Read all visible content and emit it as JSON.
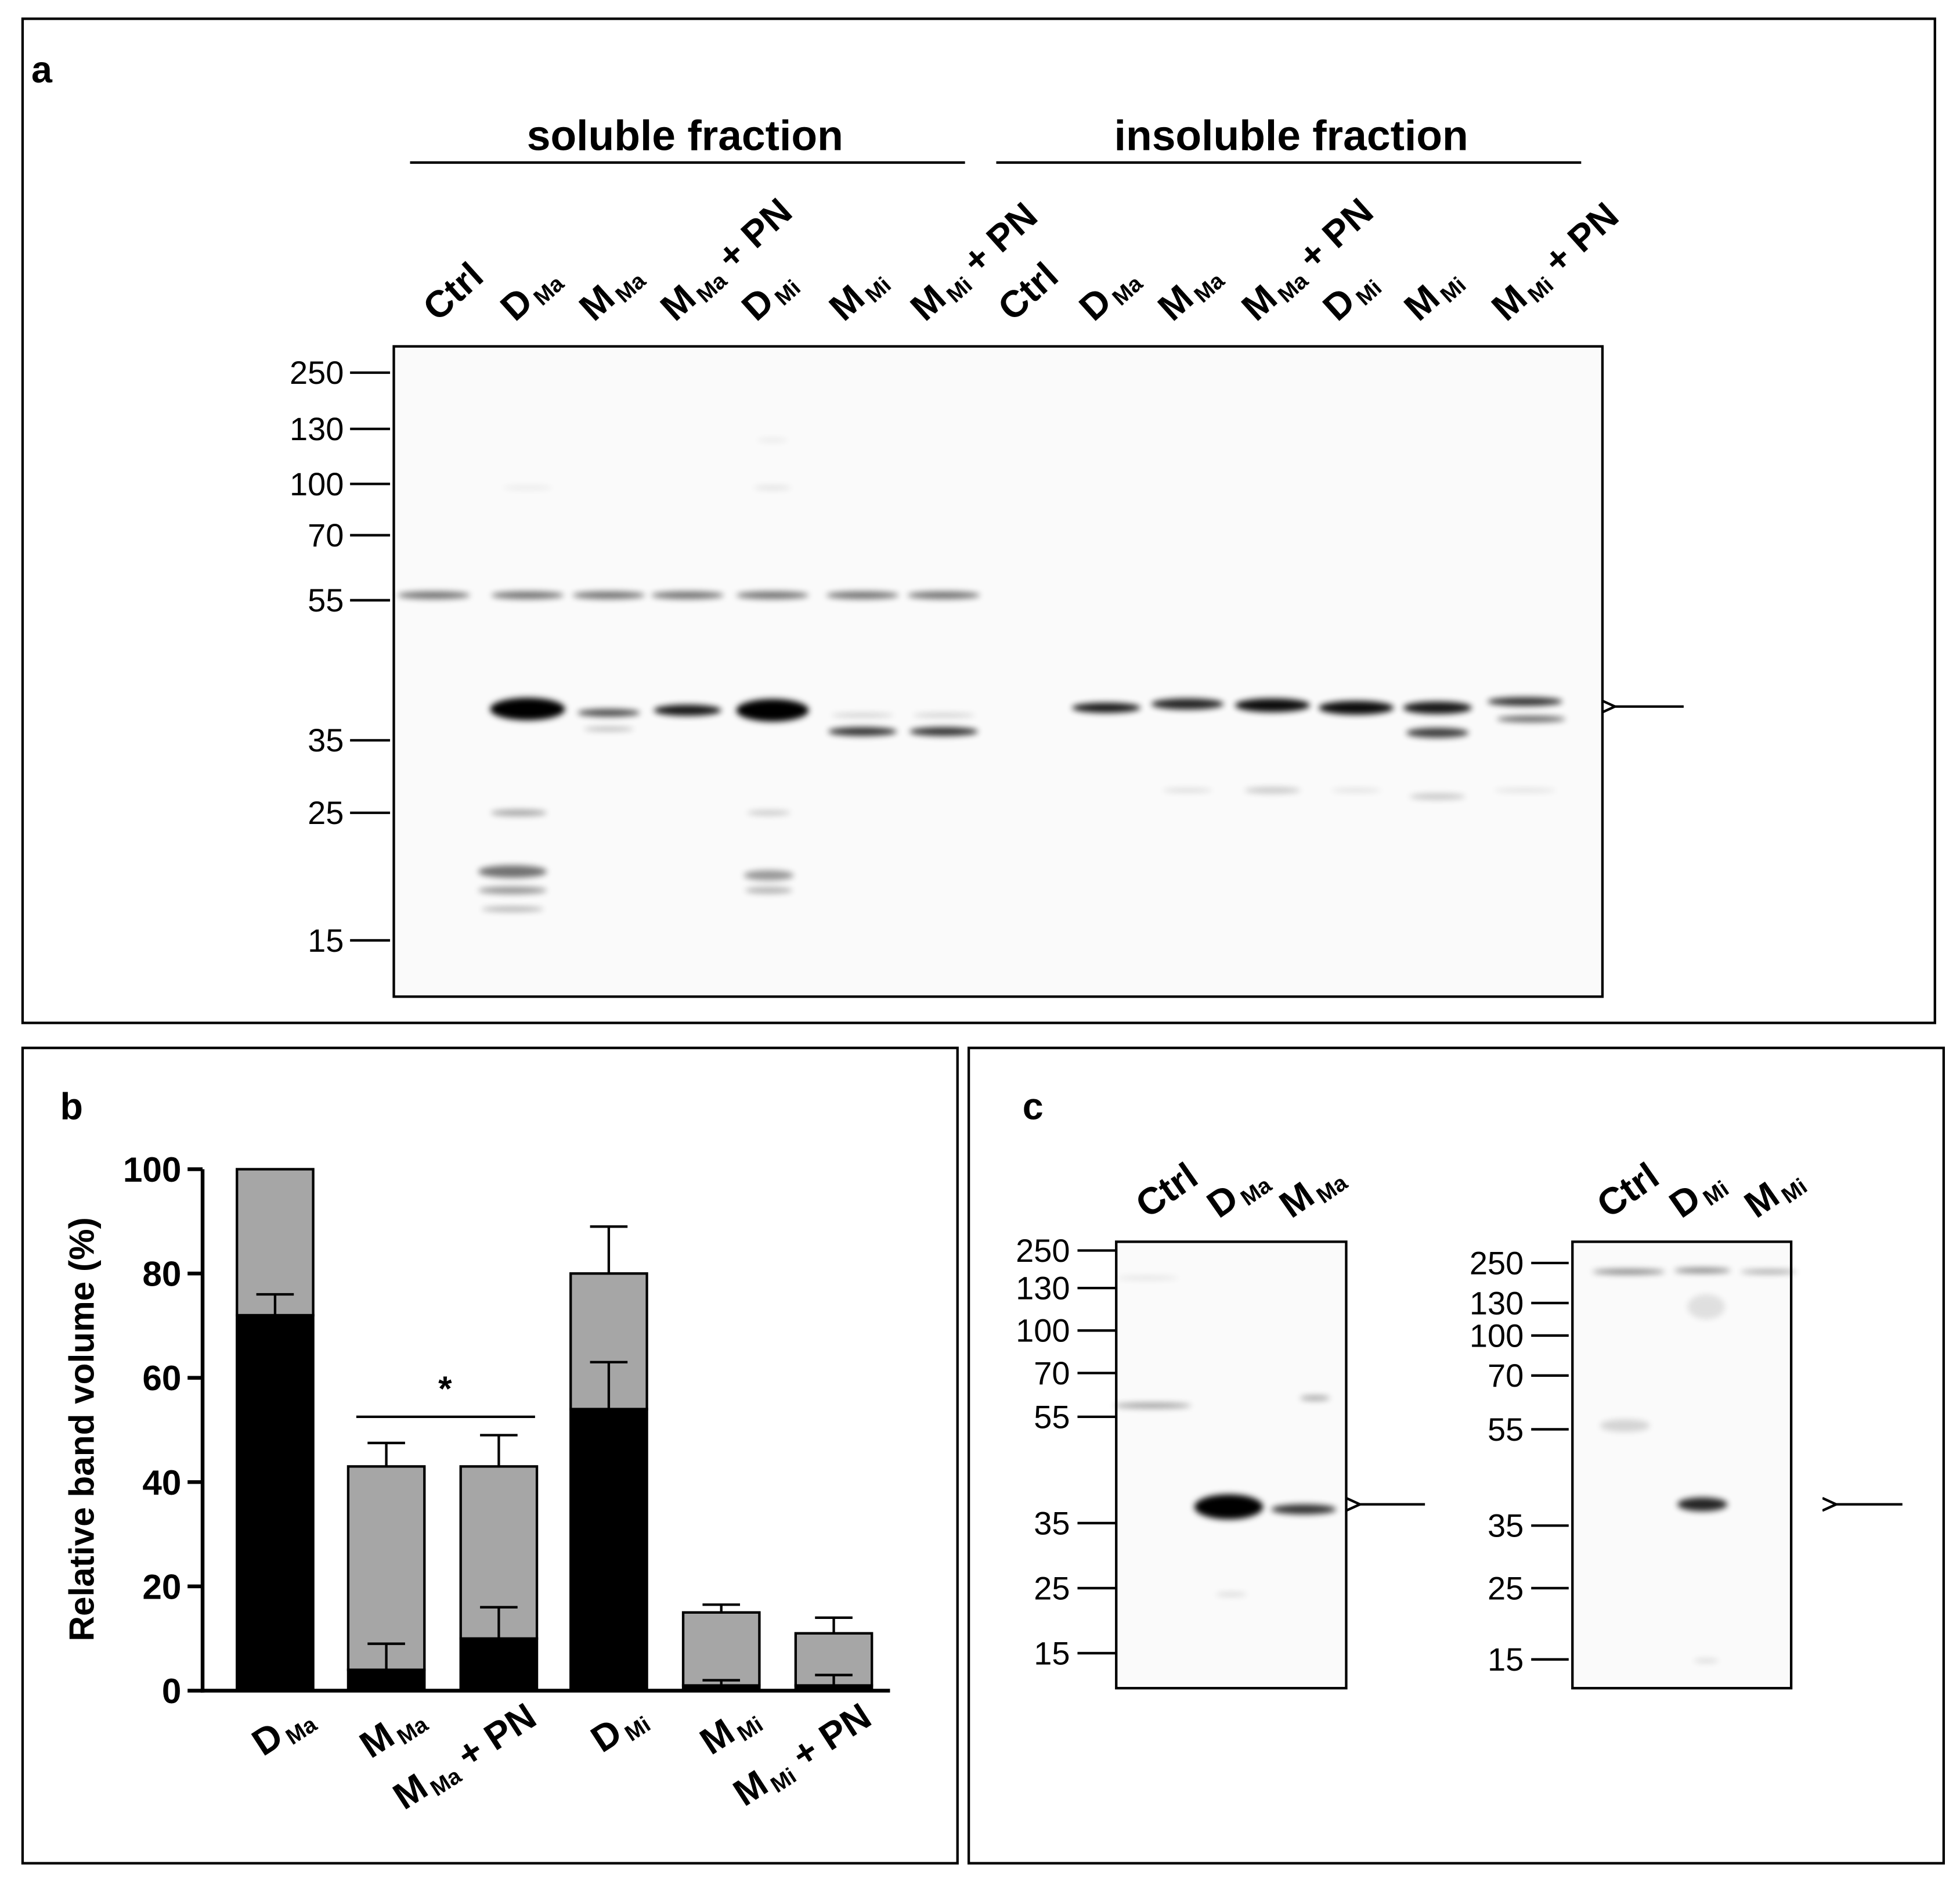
{
  "panel_a": {
    "label": "a",
    "groups": [
      {
        "title": "soluble fraction",
        "lanes": [
          {
            "base": "Ctrl"
          },
          {
            "base": "D",
            "sub": "Ma"
          },
          {
            "base": "M",
            "sub": "Ma"
          },
          {
            "base": "M",
            "sub": "Ma",
            "suffix": "+ PN"
          },
          {
            "base": "D",
            "sub": "Mi"
          },
          {
            "base": "M",
            "sub": "Mi"
          },
          {
            "base": "M",
            "sub": "Mi",
            "suffix": "+ PN"
          }
        ]
      },
      {
        "title": "insoluble fraction",
        "lanes": [
          {
            "base": "Ctrl"
          },
          {
            "base": "D",
            "sub": "Ma"
          },
          {
            "base": "M",
            "sub": "Ma"
          },
          {
            "base": "M",
            "sub": "Ma",
            "suffix": "+ PN"
          },
          {
            "base": "D",
            "sub": "Mi"
          },
          {
            "base": "M",
            "sub": "Mi"
          },
          {
            "base": "M",
            "sub": "Mi",
            "suffix": "+ PN"
          }
        ]
      }
    ],
    "markers": [
      250,
      130,
      100,
      70,
      55,
      35,
      25,
      15
    ]
  },
  "chart_data": {
    "type": "bar",
    "stacked": true,
    "panel_label": "b",
    "y_label": "Relative band volume (%)",
    "categories": [
      {
        "base": "D",
        "sub": "Ma"
      },
      {
        "base": "M",
        "sub": "Ma"
      },
      {
        "base": "M",
        "sub": "Ma",
        "suffix": "+ PN"
      },
      {
        "base": "D",
        "sub": "Mi"
      },
      {
        "base": "M",
        "sub": "Mi"
      },
      {
        "base": "M",
        "sub": "Mi",
        "suffix": "+ PN"
      }
    ],
    "series": [
      {
        "color": "#000000",
        "values": [
          72,
          4,
          10,
          54,
          1,
          1
        ],
        "errors": [
          4,
          5,
          6,
          9,
          1,
          2
        ]
      },
      {
        "color": "#a6a6a6",
        "values": [
          28,
          39,
          33,
          26,
          14,
          10
        ],
        "errors": [
          null,
          4.5,
          6,
          9,
          1.5,
          3
        ]
      }
    ],
    "ylim": [
      0,
      100
    ],
    "yticks": [
      0,
      20,
      40,
      60,
      80,
      100
    ],
    "annotation": "*"
  },
  "panel_c": {
    "label": "c",
    "blots": [
      {
        "lanes": [
          {
            "base": "Ctrl"
          },
          {
            "base": "D",
            "sub": "Ma"
          },
          {
            "base": "M",
            "sub": "Ma"
          }
        ],
        "markers": [
          250,
          130,
          100,
          70,
          55,
          35,
          25,
          15
        ]
      },
      {
        "lanes": [
          {
            "base": "Ctrl"
          },
          {
            "base": "D",
            "sub": "Mi"
          },
          {
            "base": "M",
            "sub": "Mi"
          }
        ],
        "markers": [
          250,
          130,
          100,
          70,
          55,
          35,
          25,
          15
        ]
      }
    ]
  }
}
